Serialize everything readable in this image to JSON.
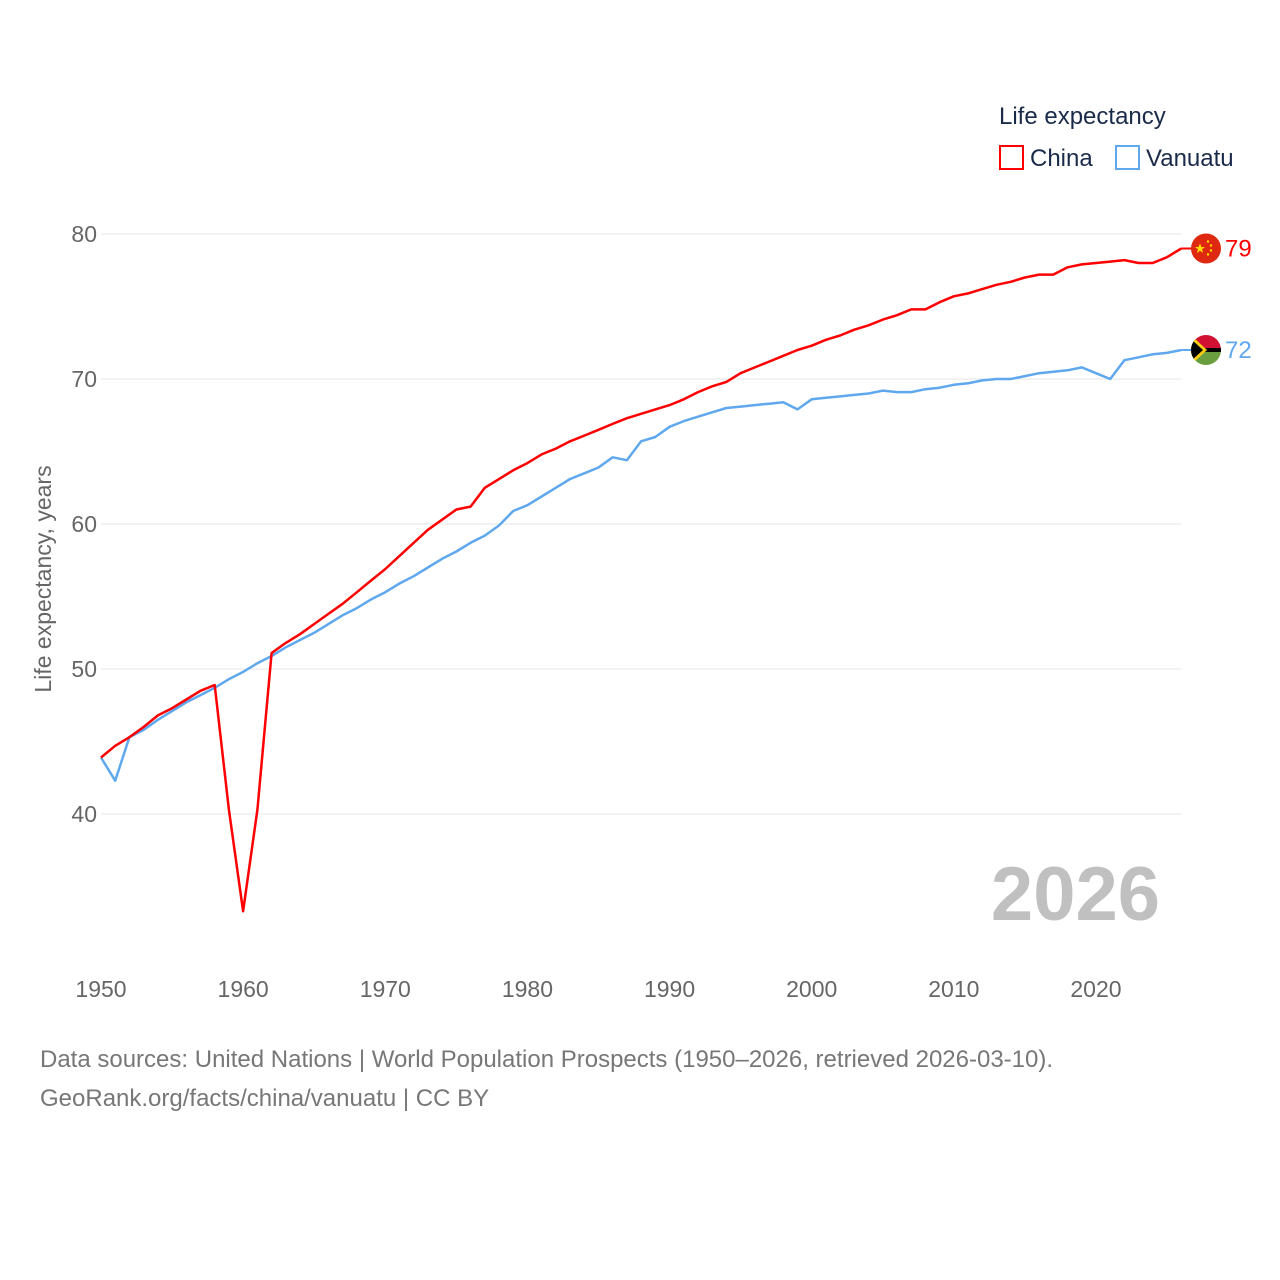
{
  "chart_data": {
    "type": "line",
    "title": "",
    "xlabel": "",
    "ylabel": "Life expectancy, years",
    "xlim": [
      1950,
      2026
    ],
    "ylim": [
      33,
      83
    ],
    "yticks": [
      40,
      50,
      60,
      70,
      80
    ],
    "xticks": [
      1950,
      1960,
      1970,
      1980,
      1990,
      2000,
      2010,
      2020
    ],
    "grid": true,
    "legend_title": "Life expectancy",
    "legend_position": "top-right",
    "year_label": "2026",
    "x_start": 1950,
    "series": [
      {
        "name": "China",
        "color": "#ff0000",
        "end_label": "79",
        "flag": "china-flag",
        "values": [
          43.9,
          44.7,
          45.3,
          46.0,
          46.8,
          47.3,
          47.9,
          48.5,
          48.9,
          40.3,
          33.3,
          40.3,
          51.1,
          51.8,
          52.4,
          53.1,
          53.8,
          54.5,
          55.3,
          56.1,
          56.9,
          57.8,
          58.7,
          59.6,
          60.3,
          61.0,
          61.2,
          62.5,
          63.1,
          63.7,
          64.2,
          64.8,
          65.2,
          65.7,
          66.1,
          66.5,
          66.9,
          67.3,
          67.6,
          67.9,
          68.2,
          68.6,
          69.1,
          69.5,
          69.8,
          70.4,
          70.8,
          71.2,
          71.6,
          72.0,
          72.3,
          72.7,
          73.0,
          73.4,
          73.7,
          74.1,
          74.4,
          74.8,
          74.8,
          75.3,
          75.7,
          75.9,
          76.2,
          76.5,
          76.7,
          77.0,
          77.2,
          77.2,
          77.7,
          77.9,
          78.0,
          78.1,
          78.2,
          78.0,
          78.0,
          78.4,
          79.0
        ]
      },
      {
        "name": "Vanuatu",
        "color": "#5fa8ee",
        "end_label": "72",
        "flag": "vanuatu-flag",
        "values": [
          43.9,
          42.3,
          45.3,
          45.8,
          46.5,
          47.1,
          47.7,
          48.2,
          48.7,
          49.3,
          49.8,
          50.4,
          50.9,
          51.5,
          52.0,
          52.5,
          53.1,
          53.7,
          54.2,
          54.8,
          55.3,
          55.9,
          56.4,
          57.0,
          57.6,
          58.1,
          58.7,
          59.2,
          59.9,
          60.9,
          61.3,
          61.9,
          62.5,
          63.1,
          63.5,
          63.9,
          64.6,
          64.4,
          65.7,
          66.0,
          66.7,
          67.1,
          67.4,
          67.7,
          68.0,
          68.1,
          68.2,
          68.3,
          68.4,
          67.9,
          68.6,
          68.7,
          68.8,
          68.9,
          69.0,
          69.2,
          69.1,
          69.1,
          69.3,
          69.4,
          69.6,
          69.7,
          69.9,
          70.0,
          70.0,
          70.2,
          70.4,
          70.5,
          70.6,
          70.8,
          70.4,
          70.0,
          71.3,
          71.5,
          71.7,
          71.8,
          72.0
        ]
      }
    ]
  },
  "source_line1": "Data sources: United Nations | World Population Prospects (1950–2026, retrieved 2026-03-10).",
  "source_line2": "GeoRank.org/facts/china/vanuatu | CC BY"
}
